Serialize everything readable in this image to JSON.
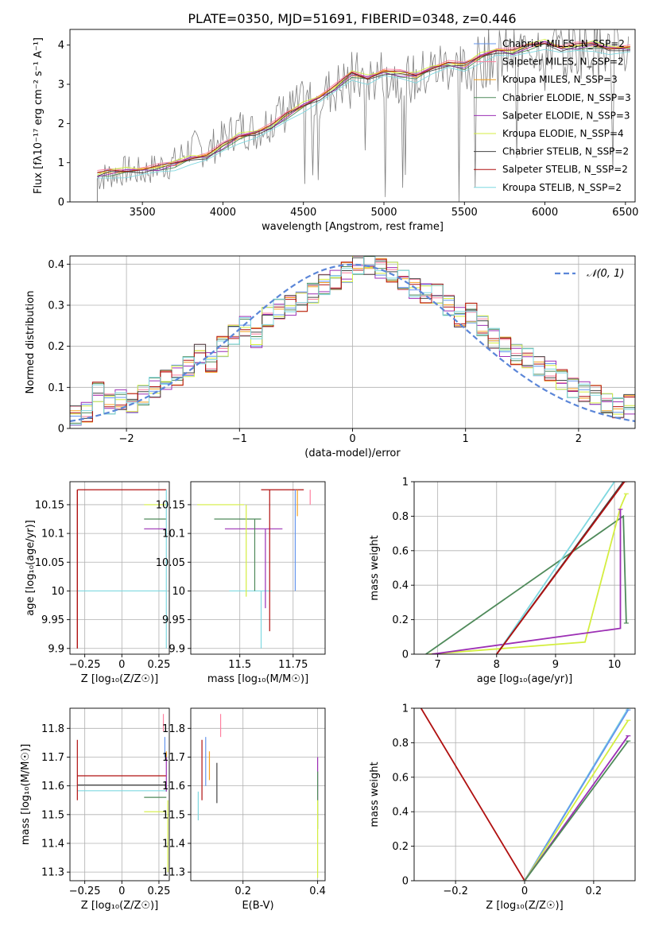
{
  "title": "PLATE=0350, MJD=51691, FIBERID=0348, z=0.446",
  "colors": {
    "chabrier_miles": "#6495ed",
    "salpeter_miles": "#ff7f9f",
    "kroupa_miles": "#f4a020",
    "chabrier_elodie": "#4f8a5a",
    "salpeter_elodie": "#9c2fb4",
    "kroupa_elodie": "#d4ee40",
    "chabrier_stelib": "#444444",
    "salpeter_stelib": "#b01010",
    "kroupa_stelib": "#7fd8e0",
    "data": "#808080",
    "normal": "#5b86d8"
  },
  "chart_data": [
    {
      "id": "spectrum",
      "type": "line",
      "title": "PLATE=0350, MJD=51691, FIBERID=0348, z=0.446",
      "xlabel": "wavelength [Angstrom, rest frame]",
      "ylabel": "Flux [fλ10⁻¹⁷ erg cm⁻² s⁻¹ A⁻¹]",
      "xlim": [
        3050,
        6560
      ],
      "ylim": [
        0,
        4.4
      ],
      "xticks": [
        3500,
        4000,
        4500,
        5000,
        5500,
        6000,
        6500
      ],
      "yticks": [
        0,
        1,
        2,
        3,
        4
      ],
      "grid": false,
      "legend_position": "top-right",
      "legend": [
        "Chabrier MILES, N_SSP=2",
        "Salpeter MILES, N_SSP=2",
        "Kroupa MILES, N_SSP=3",
        "Chabrier ELODIE, N_SSP=3",
        "Salpeter ELODIE, N_SSP=3",
        "Kroupa ELODIE, N_SSP=4",
        "Chabrier STELIB, N_SSP=2",
        "Salpeter STELIB, N_SSP=2",
        "Kroupa STELIB, N_SSP=2"
      ],
      "data_x": [
        3220,
        3300,
        3400,
        3500,
        3600,
        3700,
        3800,
        3900,
        4000,
        4100,
        4200,
        4300,
        4400,
        4500,
        4600,
        4700,
        4800,
        4900,
        5000,
        5100,
        5200,
        5300,
        5400,
        5500,
        5600,
        5700,
        5800,
        5900,
        6000,
        6100,
        6200,
        6300,
        6400,
        6530
      ],
      "data_y": [
        0.6,
        0.7,
        0.8,
        0.75,
        0.9,
        1.0,
        1.4,
        1.3,
        1.6,
        1.9,
        1.8,
        2.1,
        2.3,
        2.5,
        2.7,
        2.9,
        3.2,
        3.1,
        3.3,
        3.2,
        3.1,
        3.4,
        3.5,
        3.3,
        3.6,
        3.8,
        3.7,
        3.9,
        4.1,
        3.8,
        3.9,
        4.0,
        3.8,
        3.9
      ],
      "model_x": [
        3220,
        3300,
        3400,
        3500,
        3600,
        3700,
        3800,
        3900,
        4000,
        4100,
        4200,
        4300,
        4400,
        4500,
        4600,
        4700,
        4800,
        4900,
        5000,
        5100,
        5200,
        5300,
        5400,
        5500,
        5600,
        5700,
        5800,
        5900,
        6000,
        6100,
        6200,
        6300,
        6400,
        6530
      ],
      "model_y": [
        0.68,
        0.74,
        0.78,
        0.8,
        0.85,
        0.95,
        1.1,
        1.15,
        1.4,
        1.65,
        1.75,
        1.9,
        2.2,
        2.45,
        2.65,
        2.9,
        3.25,
        3.15,
        3.3,
        3.25,
        3.2,
        3.4,
        3.5,
        3.45,
        3.7,
        3.85,
        3.8,
        3.95,
        4.05,
        3.9,
        3.95,
        4.0,
        3.9,
        3.9
      ]
    },
    {
      "id": "residuals",
      "type": "line",
      "xlabel": "(data-model)/error",
      "ylabel": "Normed distribution",
      "xlim": [
        -2.5,
        2.5
      ],
      "ylim": [
        0,
        0.42
      ],
      "xticks": [
        -2,
        -1,
        0,
        1,
        2
      ],
      "yticks": [
        0.0,
        0.1,
        0.2,
        0.3,
        0.4
      ],
      "grid": true,
      "legend_position": "top-right",
      "legend": [
        "𝒩(0, 1)"
      ],
      "hist_bins": [
        -2.5,
        -2.4,
        -2.3,
        -2.2,
        -2.1,
        -2.0,
        -1.9,
        -1.8,
        -1.7,
        -1.6,
        -1.5,
        -1.4,
        -1.3,
        -1.2,
        -1.1,
        -1.0,
        -0.9,
        -0.8,
        -0.7,
        -0.6,
        -0.5,
        -0.4,
        -0.3,
        -0.2,
        -0.1,
        0.0,
        0.1,
        0.2,
        0.3,
        0.4,
        0.5,
        0.6,
        0.7,
        0.8,
        0.9,
        1.0,
        1.1,
        1.2,
        1.3,
        1.4,
        1.5,
        1.6,
        1.7,
        1.8,
        1.9,
        2.0,
        2.1,
        2.2,
        2.3,
        2.4
      ],
      "hist_values": [
        0.03,
        0.04,
        0.09,
        0.06,
        0.07,
        0.06,
        0.08,
        0.1,
        0.12,
        0.13,
        0.15,
        0.18,
        0.16,
        0.2,
        0.23,
        0.25,
        0.22,
        0.27,
        0.29,
        0.3,
        0.31,
        0.33,
        0.35,
        0.36,
        0.38,
        0.4,
        0.4,
        0.39,
        0.38,
        0.36,
        0.34,
        0.33,
        0.33,
        0.3,
        0.27,
        0.28,
        0.25,
        0.22,
        0.2,
        0.18,
        0.17,
        0.15,
        0.14,
        0.12,
        0.1,
        0.09,
        0.08,
        0.06,
        0.05,
        0.06
      ]
    },
    {
      "id": "age-vs-Z",
      "type": "line",
      "xlabel": "Z [log₁₀(Z/Z☉)]",
      "ylabel": "age  [log₁₀(age/yr)]",
      "xlim": [
        -0.35,
        0.32
      ],
      "ylim": [
        9.89,
        10.19
      ],
      "xticks": [
        -0.25,
        0.0,
        0.25
      ],
      "yticks": [
        9.9,
        9.95,
        10.0,
        10.05,
        10.1,
        10.15
      ],
      "grid": true,
      "segments": [
        {
          "series": "Salpeter STELIB",
          "x": [
            -0.3,
            0.3
          ],
          "y": [
            10.176,
            10.176
          ]
        },
        {
          "series": "Salpeter STELIB",
          "x": [
            -0.3,
            -0.3
          ],
          "y": [
            9.9,
            10.176
          ]
        },
        {
          "series": "Kroupa STELIB",
          "x": [
            -0.3,
            0.3
          ],
          "y": [
            10.0,
            10.0
          ]
        },
        {
          "series": "Kroupa ELODIE",
          "x": [
            0.15,
            0.3
          ],
          "y": [
            10.15,
            10.15
          ]
        },
        {
          "series": "Chabrier ELODIE",
          "x": [
            0.15,
            0.3
          ],
          "y": [
            10.125,
            10.125
          ]
        },
        {
          "series": "Salpeter ELODIE",
          "x": [
            0.15,
            0.3
          ],
          "y": [
            10.108,
            10.108
          ]
        }
      ]
    },
    {
      "id": "age-vs-mass",
      "type": "line",
      "xlabel": "mass [log₁₀(M/M☉)]",
      "ylabel": "",
      "xlim": [
        11.27,
        11.9
      ],
      "ylim": [
        9.89,
        10.19
      ],
      "xticks": [
        11.5,
        11.75
      ],
      "yticks": [
        9.9,
        9.95,
        10.0,
        10.05,
        10.1,
        10.15
      ],
      "grid": true,
      "segments": [
        {
          "series": "Salpeter STELIB",
          "x": [
            11.6,
            11.8
          ],
          "y": [
            10.176,
            10.176
          ]
        },
        {
          "series": "Kroupa ELODIE",
          "x": [
            11.3,
            11.52
          ],
          "y": [
            10.15,
            10.15
          ]
        },
        {
          "series": "Chabrier ELODIE",
          "x": [
            11.38,
            11.6
          ],
          "y": [
            10.125,
            10.125
          ]
        },
        {
          "series": "Salpeter ELODIE",
          "x": [
            11.43,
            11.7
          ],
          "y": [
            10.108,
            10.108
          ]
        },
        {
          "series": "Kroupa STELIB",
          "x": [
            11.45,
            11.65
          ],
          "y": [
            10.0,
            10.0
          ]
        }
      ]
    },
    {
      "id": "massweight-vs-age",
      "type": "line",
      "xlabel": "age  [log₁₀(age/yr)]",
      "ylabel": "mass weight",
      "xlim": [
        6.6,
        10.35
      ],
      "ylim": [
        0,
        1.0
      ],
      "xticks": [
        7,
        8,
        9,
        10
      ],
      "yticks": [
        0.0,
        0.2,
        0.4,
        0.6,
        0.8,
        1.0
      ],
      "grid": true,
      "series_lines": [
        {
          "series": "Chabrier ELODIE",
          "x": [
            6.8,
            10.15,
            10.2
          ],
          "y": [
            0.0,
            0.8,
            0.18
          ]
        },
        {
          "series": "Kroupa ELODIE",
          "x": [
            6.85,
            9.5,
            10.1,
            10.2
          ],
          "y": [
            0.0,
            0.07,
            0.85,
            0.93
          ]
        },
        {
          "series": "Salpeter ELODIE",
          "x": [
            6.9,
            10.1,
            10.1
          ],
          "y": [
            0.0,
            0.15,
            0.84
          ]
        },
        {
          "series": "Kroupa STELIB",
          "x": [
            8.0,
            10.0
          ],
          "y": [
            0.0,
            1.0
          ]
        },
        {
          "series": "Chabrier STELIB",
          "x": [
            8.0,
            10.15
          ],
          "y": [
            0.0,
            1.0
          ]
        },
        {
          "series": "Salpeter STELIB",
          "x": [
            8.0,
            10.17
          ],
          "y": [
            0.0,
            1.0
          ]
        }
      ]
    },
    {
      "id": "mass-vs-Z",
      "type": "line",
      "xlabel": "Z [log₁₀(Z/Z☉)]",
      "ylabel": "mass [log₁₀(M/M☉)]",
      "xlim": [
        -0.35,
        0.32
      ],
      "ylim": [
        11.27,
        11.87
      ],
      "xticks": [
        -0.25,
        0.0,
        0.25
      ],
      "yticks": [
        11.3,
        11.4,
        11.5,
        11.6,
        11.7,
        11.8
      ],
      "grid": true,
      "segments": [
        {
          "series": "Salpeter STELIB",
          "x": [
            -0.3,
            0.3
          ],
          "y": [
            11.635,
            11.635
          ]
        },
        {
          "series": "Chabrier STELIB",
          "x": [
            -0.3,
            0.3
          ],
          "y": [
            11.603,
            11.603
          ]
        },
        {
          "series": "Kroupa STELIB",
          "x": [
            -0.3,
            0.3
          ],
          "y": [
            11.583,
            11.583
          ]
        },
        {
          "series": "Chabrier ELODIE",
          "x": [
            0.15,
            0.3
          ],
          "y": [
            11.56,
            11.56
          ]
        },
        {
          "series": "Kroupa ELODIE",
          "x": [
            0.15,
            0.3
          ],
          "y": [
            11.51,
            11.51
          ]
        }
      ]
    },
    {
      "id": "mass-vs-EBV",
      "type": "scatter",
      "xlabel": "E(B-V)",
      "ylabel": "",
      "xlim": [
        0.06,
        0.42
      ],
      "ylim": [
        11.27,
        11.87
      ],
      "xticks": [
        0.2,
        0.4
      ],
      "yticks": [
        11.3,
        11.4,
        11.5,
        11.6,
        11.7,
        11.8
      ],
      "grid": true,
      "errorbars": [
        {
          "series": "Kroupa STELIB",
          "x": 0.08,
          "y": [
            11.48,
            11.58
          ]
        },
        {
          "series": "Salpeter STELIB",
          "x": 0.09,
          "y": [
            11.55,
            11.76
          ]
        },
        {
          "series": "Chabrier MILES",
          "x": 0.1,
          "y": [
            11.6,
            11.77
          ]
        },
        {
          "series": "Kroupa MILES",
          "x": 0.11,
          "y": [
            11.62,
            11.72
          ]
        },
        {
          "series": "Chabrier STELIB",
          "x": 0.13,
          "y": [
            11.54,
            11.68
          ]
        },
        {
          "series": "Salpeter MILES",
          "x": 0.14,
          "y": [
            11.77,
            11.85
          ]
        },
        {
          "series": "Salpeter ELODIE",
          "x": 0.4,
          "y": [
            11.55,
            11.7
          ]
        },
        {
          "series": "Chabrier ELODIE",
          "x": 0.4,
          "y": [
            11.45,
            11.65
          ]
        },
        {
          "series": "Kroupa ELODIE",
          "x": 0.4,
          "y": [
            11.28,
            11.55
          ]
        }
      ]
    },
    {
      "id": "massweight-vs-Z",
      "type": "line",
      "xlabel": "Z [log₁₀(Z/Z☉)]",
      "ylabel": "mass weight",
      "xlim": [
        -0.32,
        0.32
      ],
      "ylim": [
        0,
        1.0
      ],
      "xticks": [
        -0.2,
        0.0,
        0.2
      ],
      "yticks": [
        0.0,
        0.2,
        0.4,
        0.6,
        0.8,
        1.0
      ],
      "grid": true,
      "series_lines": [
        {
          "series": "Salpeter STELIB",
          "x": [
            -0.3,
            0.0
          ],
          "y": [
            1.0,
            0.0
          ]
        },
        {
          "series": "Kroupa STELIB",
          "x": [
            0.0,
            0.3
          ],
          "y": [
            0.0,
            1.0
          ]
        },
        {
          "series": "Chabrier MILES",
          "x": [
            0.0,
            0.3
          ],
          "y": [
            0.0,
            0.99
          ]
        },
        {
          "series": "Kroupa ELODIE",
          "x": [
            0.0,
            0.3
          ],
          "y": [
            0.0,
            0.93
          ]
        },
        {
          "series": "Salpeter ELODIE",
          "x": [
            0.0,
            0.3
          ],
          "y": [
            0.0,
            0.84
          ]
        },
        {
          "series": "Chabrier ELODIE",
          "x": [
            0.0,
            0.3
          ],
          "y": [
            0.0,
            0.81
          ]
        }
      ]
    }
  ]
}
